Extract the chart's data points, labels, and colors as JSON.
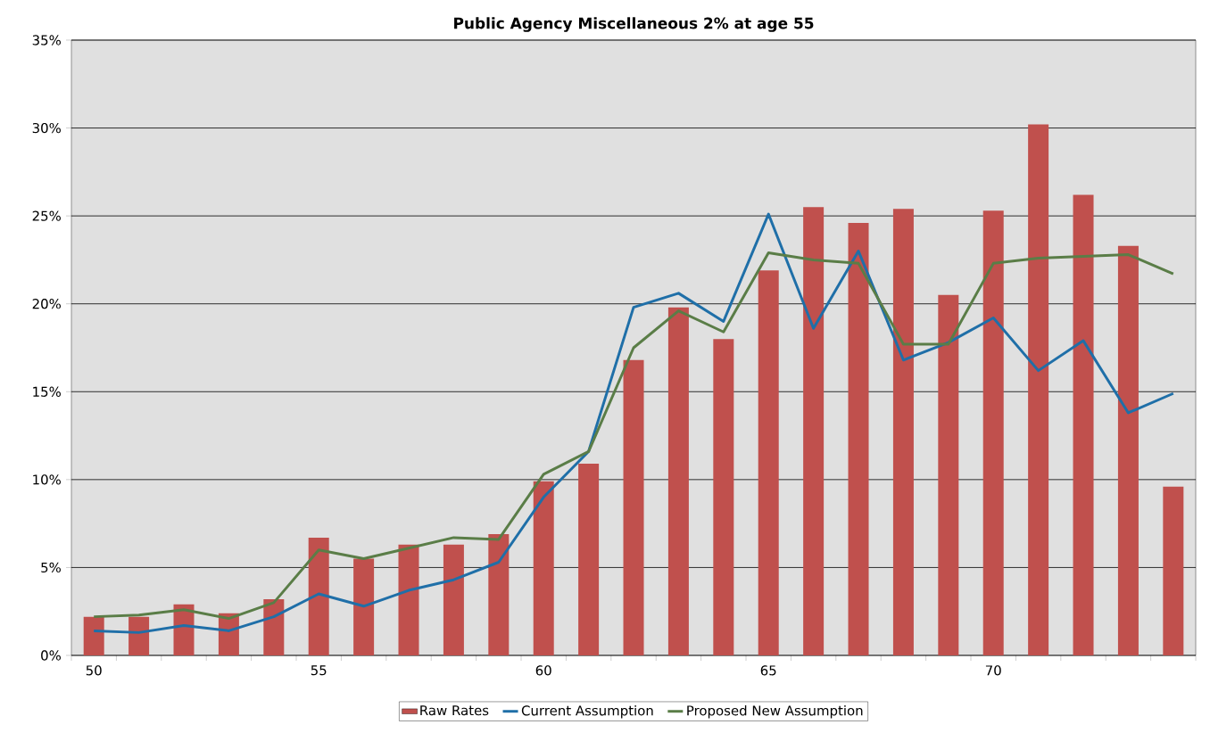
{
  "chart_data": {
    "type": "bar",
    "title": "Public Agency Miscellaneous 2% at age 55",
    "categories": [
      "50",
      null,
      null,
      null,
      null,
      "55",
      null,
      null,
      null,
      null,
      "60",
      null,
      null,
      null,
      null,
      "65",
      null,
      null,
      null,
      null,
      "70",
      null,
      null,
      null,
      null
    ],
    "series": [
      {
        "name": "Raw Rates",
        "color": "#c0504d",
        "values": [
          2.2,
          2.2,
          2.9,
          2.4,
          3.2,
          6.7,
          5.5,
          6.3,
          6.3,
          6.9,
          9.9,
          10.9,
          16.8,
          19.8,
          18.0,
          21.9,
          25.5,
          24.6,
          25.4,
          20.5,
          25.3,
          30.2,
          26.2,
          23.3,
          9.6
        ]
      },
      {
        "name": "Current Assumption",
        "type": "line",
        "color": "#1f6fa8",
        "values": [
          1.4,
          1.3,
          1.7,
          1.4,
          2.2,
          3.5,
          2.8,
          3.7,
          4.3,
          5.3,
          9.0,
          11.6,
          19.8,
          20.6,
          19.0,
          25.1,
          18.6,
          23.0,
          16.8,
          17.8,
          19.2,
          16.2,
          17.9,
          13.8,
          14.9
        ]
      },
      {
        "name": "Proposed New Assumption",
        "type": "line",
        "color": "#5a7d47",
        "values": [
          2.2,
          2.3,
          2.6,
          2.1,
          3.0,
          6.0,
          5.5,
          6.1,
          6.7,
          6.6,
          10.3,
          11.6,
          17.5,
          19.6,
          18.4,
          22.9,
          22.5,
          22.3,
          17.7,
          17.7,
          22.3,
          22.6,
          22.7,
          22.8,
          21.7
        ]
      }
    ],
    "ylim": [
      0,
      35
    ],
    "yticks": [
      {
        "value": 0,
        "label": "0%"
      },
      {
        "value": 5,
        "label": "5%"
      },
      {
        "value": 10,
        "label": "10%"
      },
      {
        "value": 15,
        "label": "15%"
      },
      {
        "value": 20,
        "label": "20%"
      },
      {
        "value": 25,
        "label": "25%"
      },
      {
        "value": 30,
        "label": "30%"
      },
      {
        "value": 35,
        "label": "35%"
      }
    ],
    "grid": "y",
    "legend": "bottom",
    "line_style": "solid",
    "marker": "none"
  }
}
